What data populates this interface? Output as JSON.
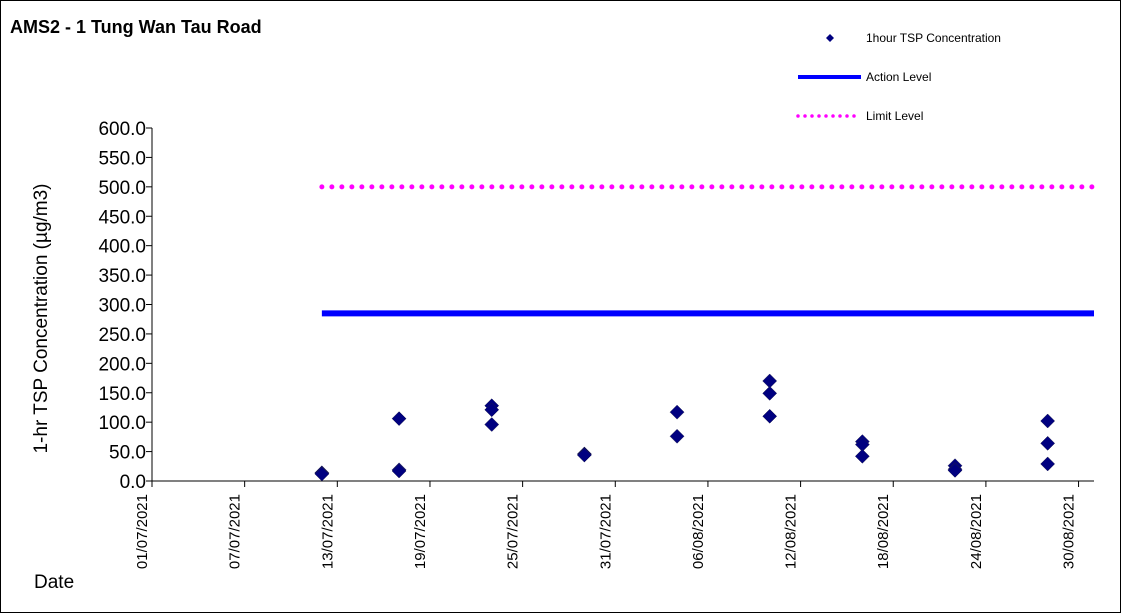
{
  "title": "AMS2 - 1 Tung Wan Tau Road",
  "chart_data": {
    "type": "scatter",
    "title": "AMS2 - 1 Tung Wan Tau Road",
    "xlabel": "Date",
    "ylabel": "1-hr TSP Concentration (µg/m3)",
    "ylim": [
      0,
      600
    ],
    "y_ticks": [
      "0.0",
      "50.0",
      "100.0",
      "150.0",
      "200.0",
      "250.0",
      "300.0",
      "350.0",
      "400.0",
      "450.0",
      "500.0",
      "550.0",
      "600.0"
    ],
    "xlim": [
      "2021-07-01",
      "2021-08-31"
    ],
    "x_ticks": [
      "01/07/2021",
      "07/07/2021",
      "13/07/2021",
      "19/07/2021",
      "25/07/2021",
      "31/07/2021",
      "06/08/2021",
      "12/08/2021",
      "18/08/2021",
      "24/08/2021",
      "30/08/2021"
    ],
    "legend_position": "top-right",
    "series": [
      {
        "name": "1hour TSP Concentration",
        "kind": "scatter",
        "marker": "diamond",
        "color": "#000080",
        "points": [
          {
            "x": "2021-07-12",
            "y": 14
          },
          {
            "x": "2021-07-12",
            "y": 13
          },
          {
            "x": "2021-07-12",
            "y": 12
          },
          {
            "x": "2021-07-17",
            "y": 106
          },
          {
            "x": "2021-07-17",
            "y": 19
          },
          {
            "x": "2021-07-17",
            "y": 17
          },
          {
            "x": "2021-07-23",
            "y": 128
          },
          {
            "x": "2021-07-23",
            "y": 121
          },
          {
            "x": "2021-07-23",
            "y": 96
          },
          {
            "x": "2021-07-29",
            "y": 46
          },
          {
            "x": "2021-07-29",
            "y": 45
          },
          {
            "x": "2021-07-29",
            "y": 44
          },
          {
            "x": "2021-08-04",
            "y": 117
          },
          {
            "x": "2021-08-04",
            "y": 76
          },
          {
            "x": "2021-08-10",
            "y": 170
          },
          {
            "x": "2021-08-10",
            "y": 149
          },
          {
            "x": "2021-08-10",
            "y": 110
          },
          {
            "x": "2021-08-16",
            "y": 67
          },
          {
            "x": "2021-08-16",
            "y": 62
          },
          {
            "x": "2021-08-16",
            "y": 42
          },
          {
            "x": "2021-08-22",
            "y": 26
          },
          {
            "x": "2021-08-22",
            "y": 20
          },
          {
            "x": "2021-08-22",
            "y": 18
          },
          {
            "x": "2021-08-28",
            "y": 102
          },
          {
            "x": "2021-08-28",
            "y": 64
          },
          {
            "x": "2021-08-28",
            "y": 29
          }
        ]
      },
      {
        "name": "Action Level",
        "kind": "line",
        "style": "solid",
        "color": "#0000ff",
        "x_start": "2021-07-12",
        "x_end": "2021-08-31",
        "y": 285
      },
      {
        "name": "Limit Level",
        "kind": "line",
        "style": "dotted",
        "color": "#ff00ff",
        "x_start": "2021-07-12",
        "x_end": "2021-08-31",
        "y": 500
      }
    ]
  }
}
